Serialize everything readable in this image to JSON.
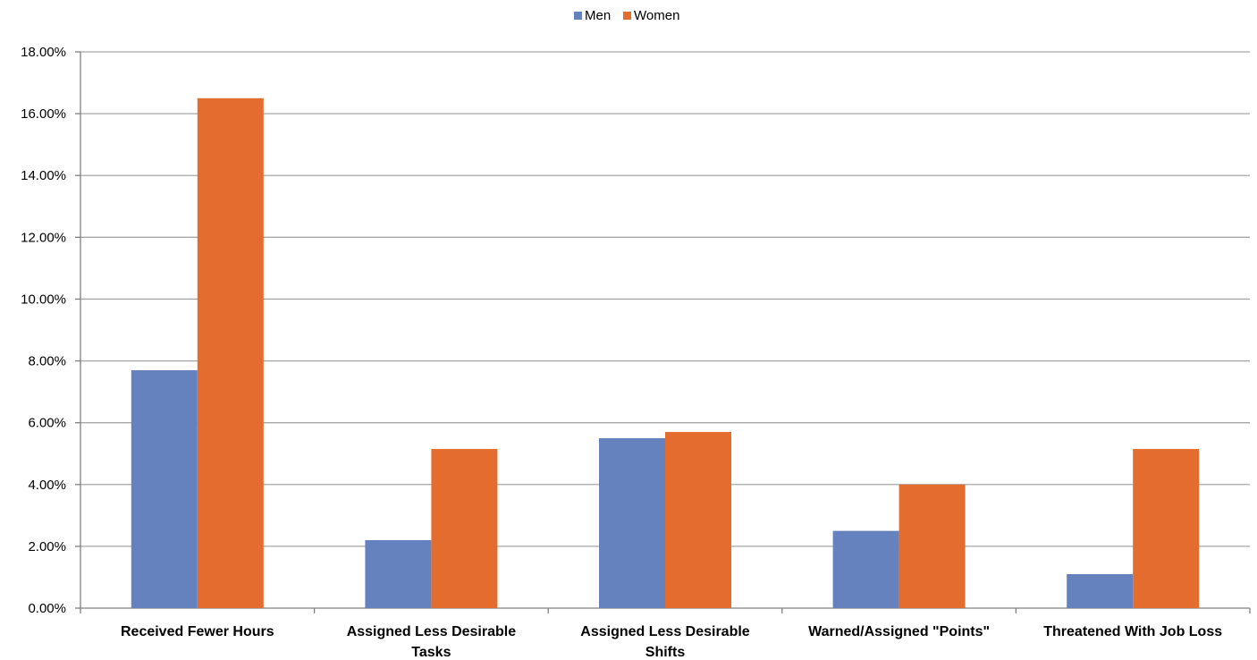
{
  "chart_data": {
    "type": "bar",
    "categories": [
      [
        "Received Fewer Hours"
      ],
      [
        "Assigned Less Desirable",
        "Tasks"
      ],
      [
        "Assigned Less Desirable",
        "Shifts"
      ],
      [
        "Warned/Assigned \"Points\""
      ],
      [
        "Threatened With Job Loss"
      ]
    ],
    "series": [
      {
        "name": "Men",
        "color": "#6682BE",
        "values": [
          7.7,
          2.2,
          5.5,
          2.5,
          1.1
        ]
      },
      {
        "name": "Women",
        "color": "#E46C2E",
        "values": [
          16.5,
          5.15,
          5.7,
          4.0,
          5.15
        ]
      }
    ],
    "y_ticks": [
      "0.00%",
      "2.00%",
      "4.00%",
      "6.00%",
      "8.00%",
      "10.00%",
      "12.00%",
      "14.00%",
      "16.00%",
      "18.00%"
    ],
    "ylim": [
      0,
      18
    ],
    "grid": true,
    "legend_position": "top-center",
    "title": "",
    "xlabel": "",
    "ylabel": ""
  }
}
